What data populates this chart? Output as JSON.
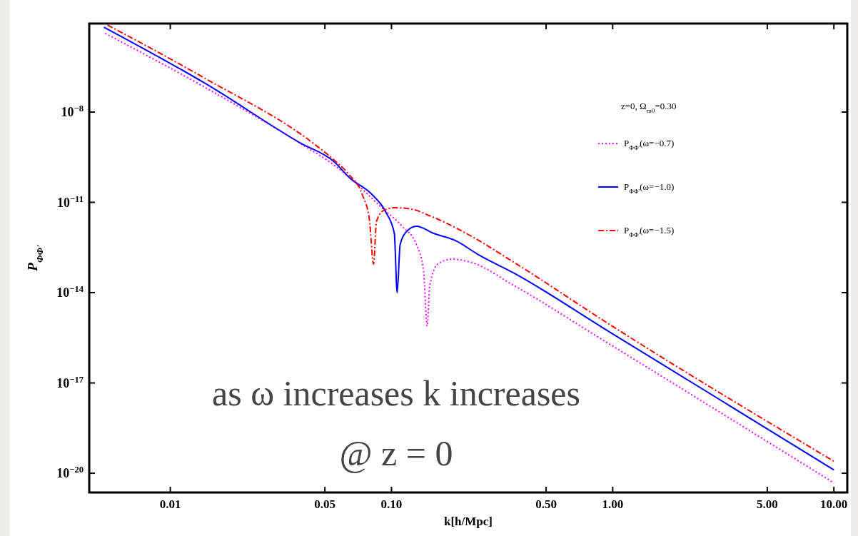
{
  "chart_data": {
    "type": "line",
    "xlabel": "k[h/Mpc]",
    "ylabel": "P$_{ΦΦ'}$",
    "legend_title": "z=0, Ω$_{m0}$=0.30",
    "legend": "top right",
    "log": "xy",
    "grid": false,
    "xlim": [
      0.0043,
      11.5
    ],
    "xticks": [
      0.01,
      0.05,
      {
        "value": 0.1,
        "label": "0.10"
      },
      {
        "value": 0.5,
        "label": "0.50"
      },
      {
        "value": 1,
        "label": "1.00"
      },
      {
        "value": 5,
        "label": "5.00"
      },
      {
        "value": 10,
        "label": "10.00"
      }
    ],
    "ylim": [
      2.3e-21,
      8.7e-06
    ],
    "yticks": [
      {
        "value": 1e-08,
        "label": "10$^{−8}$"
      },
      {
        "value": 1e-11,
        "label": "10$^{−11}$"
      },
      {
        "value": 1e-14,
        "label": "10$^{−14}$"
      },
      {
        "value": 1e-17,
        "label": "10$^{−17}$"
      },
      {
        "value": 1e-20,
        "label": "10$^{−20}$"
      }
    ],
    "annotations": [
      "as ω increases k increases",
      "@ z = 0"
    ],
    "series": [
      {
        "name": "P$_{ΦΦ'}$(ω=−0.7)",
        "color": "#ff00ff",
        "line_style": "dotted",
        "x": [
          0.00508,
          0.0144,
          0.0407,
          0.0552,
          0.0636,
          0.0895,
          0.1117,
          0.1298,
          0.1397,
          0.145,
          0.149,
          0.162,
          0.188,
          0.23,
          0.359,
          0.942,
          10
        ],
        "values": [
          4.1e-06,
          6.5e-08,
          7.2e-10,
          1.7e-10,
          7.4e-11,
          7.1e-12,
          1.6e-12,
          3.9e-13,
          5.2e-14,
          7.8e-16,
          1.7e-14,
          8.9e-14,
          1.3e-13,
          1e-13,
          1.7e-14,
          2.2e-16,
          4.8e-21
        ]
      },
      {
        "name": "P$_{ΦΦ'}$(ω=−1.0)",
        "color": "#0000ff",
        "line_style": "solid",
        "x": [
          0.00501,
          0.0144,
          0.0386,
          0.0552,
          0.065,
          0.0812,
          0.0942,
          0.103,
          0.1061,
          0.1094,
          0.116,
          0.1298,
          0.155,
          0.194,
          0.248,
          0.359,
          0.942,
          10
        ],
        "values": [
          6.6e-06,
          8.9e-08,
          9.5e-10,
          2.2e-10,
          6.3e-11,
          1.9e-11,
          4.8e-12,
          9.3e-13,
          1e-14,
          3.9e-13,
          1e-12,
          1.6e-12,
          9.3e-13,
          5.4e-13,
          1.8e-13,
          4.4e-14,
          5.6e-16,
          1.3e-20
        ]
      },
      {
        "name": "P$_{ΦΦ'}$(ω=−1.5)",
        "color": "#ff0000",
        "line_style": "dashed",
        "x": [
          0.0052,
          0.0144,
          0.0449,
          0.0552,
          0.0636,
          0.0738,
          0.0794,
          0.083,
          0.0855,
          0.0922,
          0.1038,
          0.1224,
          0.15,
          0.218,
          0.359,
          0.942,
          10
        ],
        "values": [
          7.8e-06,
          1.3e-07,
          8.5e-10,
          2.5e-10,
          9.1e-11,
          1.8e-11,
          2.8e-12,
          8.9e-14,
          2.3e-12,
          5.4e-12,
          6.6e-12,
          6e-12,
          3.5e-12,
          9.3e-13,
          1e-13,
          1e-15,
          2.5e-20
        ]
      }
    ]
  }
}
